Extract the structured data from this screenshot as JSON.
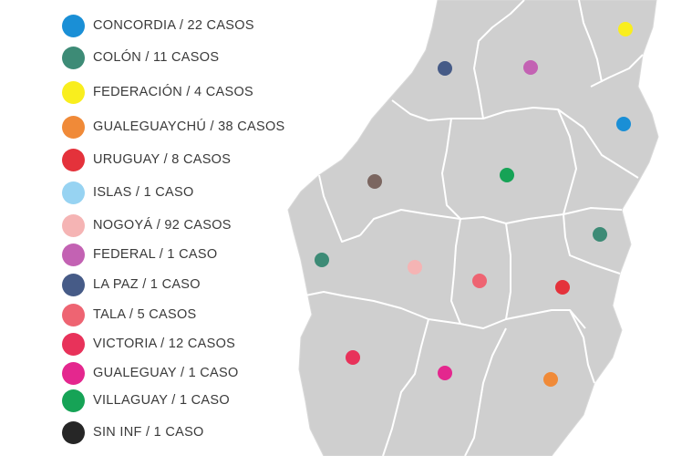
{
  "legend": {
    "items": [
      {
        "label": "CONCORDIA / 22 CASOS",
        "color": "#1a8fd6"
      },
      {
        "label": "COLÓN / 11 CASOS",
        "color": "#3d8b76"
      },
      {
        "label": "FEDERACIÓN / 4 CASOS",
        "color": "#f9ee1e"
      },
      {
        "label": "GUALEGUAYCHÚ / 38 CASOS",
        "color": "#f08a38"
      },
      {
        "label": "URUGUAY / 8 CASOS",
        "color": "#e4323b"
      },
      {
        "label": "ISLAS / 1 CASO",
        "color": "#97d3f2"
      },
      {
        "label": "NOGOYÁ / 92 CASOS",
        "color": "#f5b4b4"
      },
      {
        "label": "FEDERAL / 1 CASO",
        "color": "#c362b3"
      },
      {
        "label": "LA PAZ / 1 CASO",
        "color": "#465b87"
      },
      {
        "label": "TALA / 5 CASOS",
        "color": "#ee6472"
      },
      {
        "label": "VICTORIA / 12 CASOS",
        "color": "#e8325a"
      },
      {
        "label": "GUALEGUAY / 1 CASO",
        "color": "#e4278e"
      },
      {
        "label": "VILLAGUAY / 1 CASO",
        "color": "#16a356"
      },
      {
        "label": "SIN INF / 1 CASO",
        "color": "#262626"
      }
    ]
  },
  "map": {
    "fill": "#cfcfcf",
    "border_color": "#ffffff",
    "markers": [
      {
        "name": "la-paz",
        "color": "#465b87"
      },
      {
        "name": "federal",
        "color": "#c362b3"
      },
      {
        "name": "federacion",
        "color": "#f9ee1e"
      },
      {
        "name": "concordia",
        "color": "#1a8fd6"
      },
      {
        "name": "parana",
        "color": "#7b6660"
      },
      {
        "name": "villaguay",
        "color": "#16a356"
      },
      {
        "name": "colon",
        "color": "#3d8b76"
      },
      {
        "name": "diamante",
        "color": "#3d8b76"
      },
      {
        "name": "nogoya",
        "color": "#f5b4b4"
      },
      {
        "name": "tala",
        "color": "#ee6472"
      },
      {
        "name": "uruguay",
        "color": "#e4323b"
      },
      {
        "name": "victoria",
        "color": "#e8325a"
      },
      {
        "name": "gualeguay",
        "color": "#e4278e"
      },
      {
        "name": "gualeguaychu",
        "color": "#f08a38"
      }
    ]
  }
}
